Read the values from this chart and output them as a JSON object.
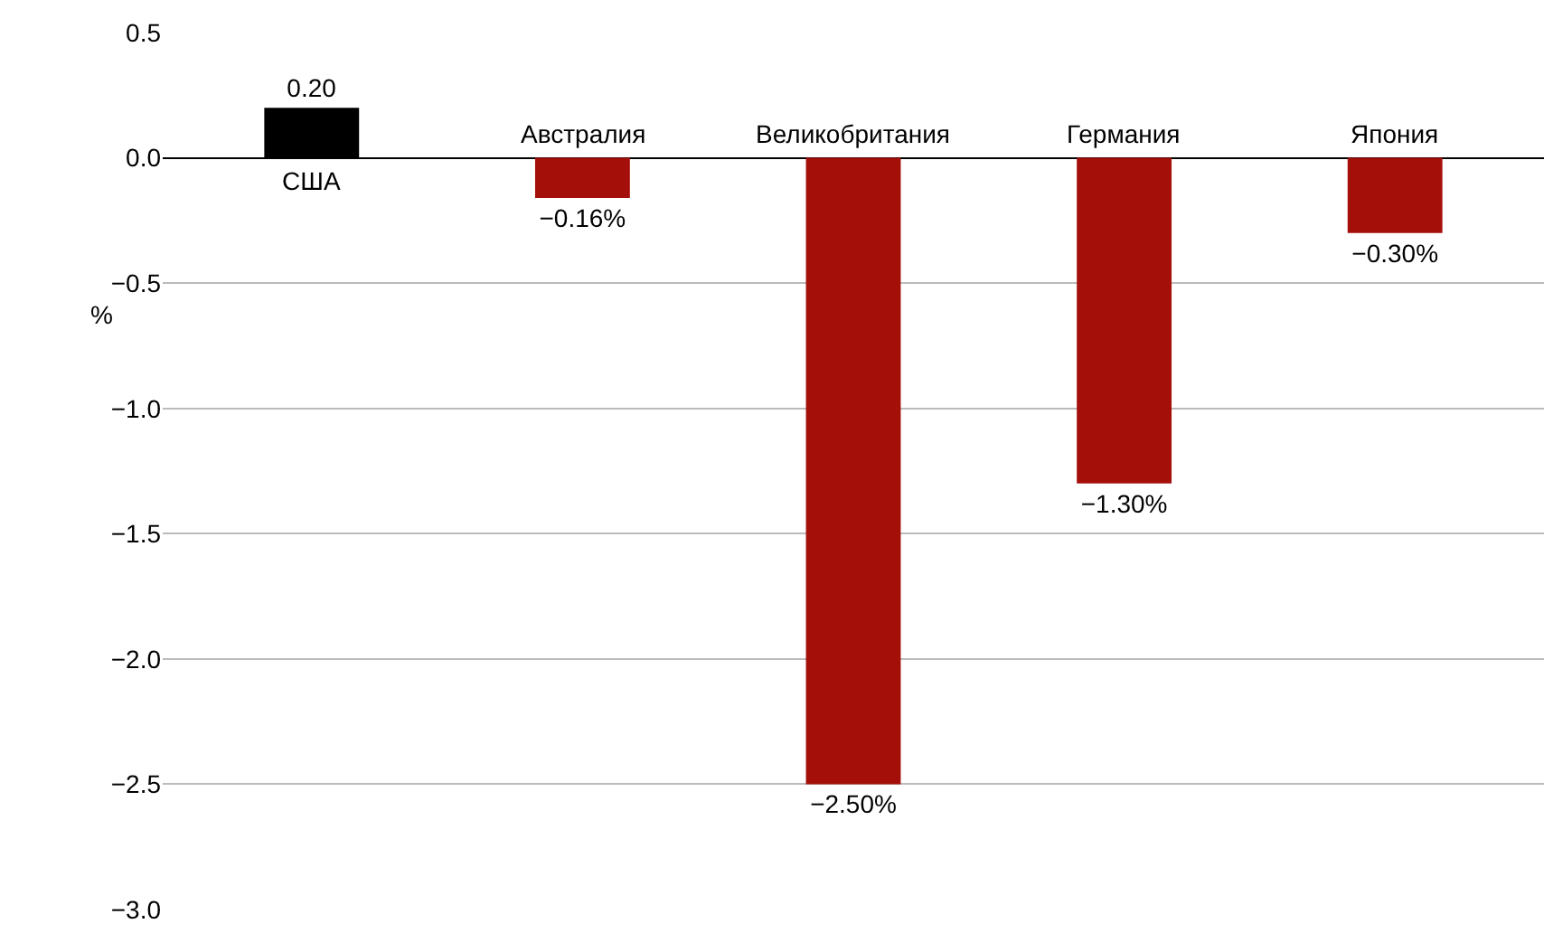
{
  "chart_data": {
    "type": "bar",
    "ylabel": "%",
    "categories": [
      "США",
      "Австралия",
      "Великобритания",
      "Германия",
      "Япония"
    ],
    "values": [
      0.2,
      -0.16,
      -2.5,
      -1.3,
      -0.3
    ],
    "colors": [
      "#000000",
      "#a50f0a",
      "#a50f0a",
      "#a50f0a",
      "#a50f0a"
    ],
    "value_labels": [
      "0.20",
      "−0.16%",
      "−2.50%",
      "−1.30%",
      "−0.30%"
    ],
    "ylim": [
      -3.0,
      0.5
    ],
    "yticks": [
      {
        "value": 0.5,
        "label": "0.5"
      },
      {
        "value": 0.0,
        "label": "0.0"
      },
      {
        "value": -0.5,
        "label": "−0.5"
      },
      {
        "value": -1.0,
        "label": "−1.0"
      },
      {
        "value": -1.5,
        "label": "−1.5"
      },
      {
        "value": -2.0,
        "label": "−2.0"
      },
      {
        "value": -2.5,
        "label": "−2.5"
      },
      {
        "value": -3.0,
        "label": "−3.0"
      }
    ],
    "grid": "y",
    "legend": false
  }
}
